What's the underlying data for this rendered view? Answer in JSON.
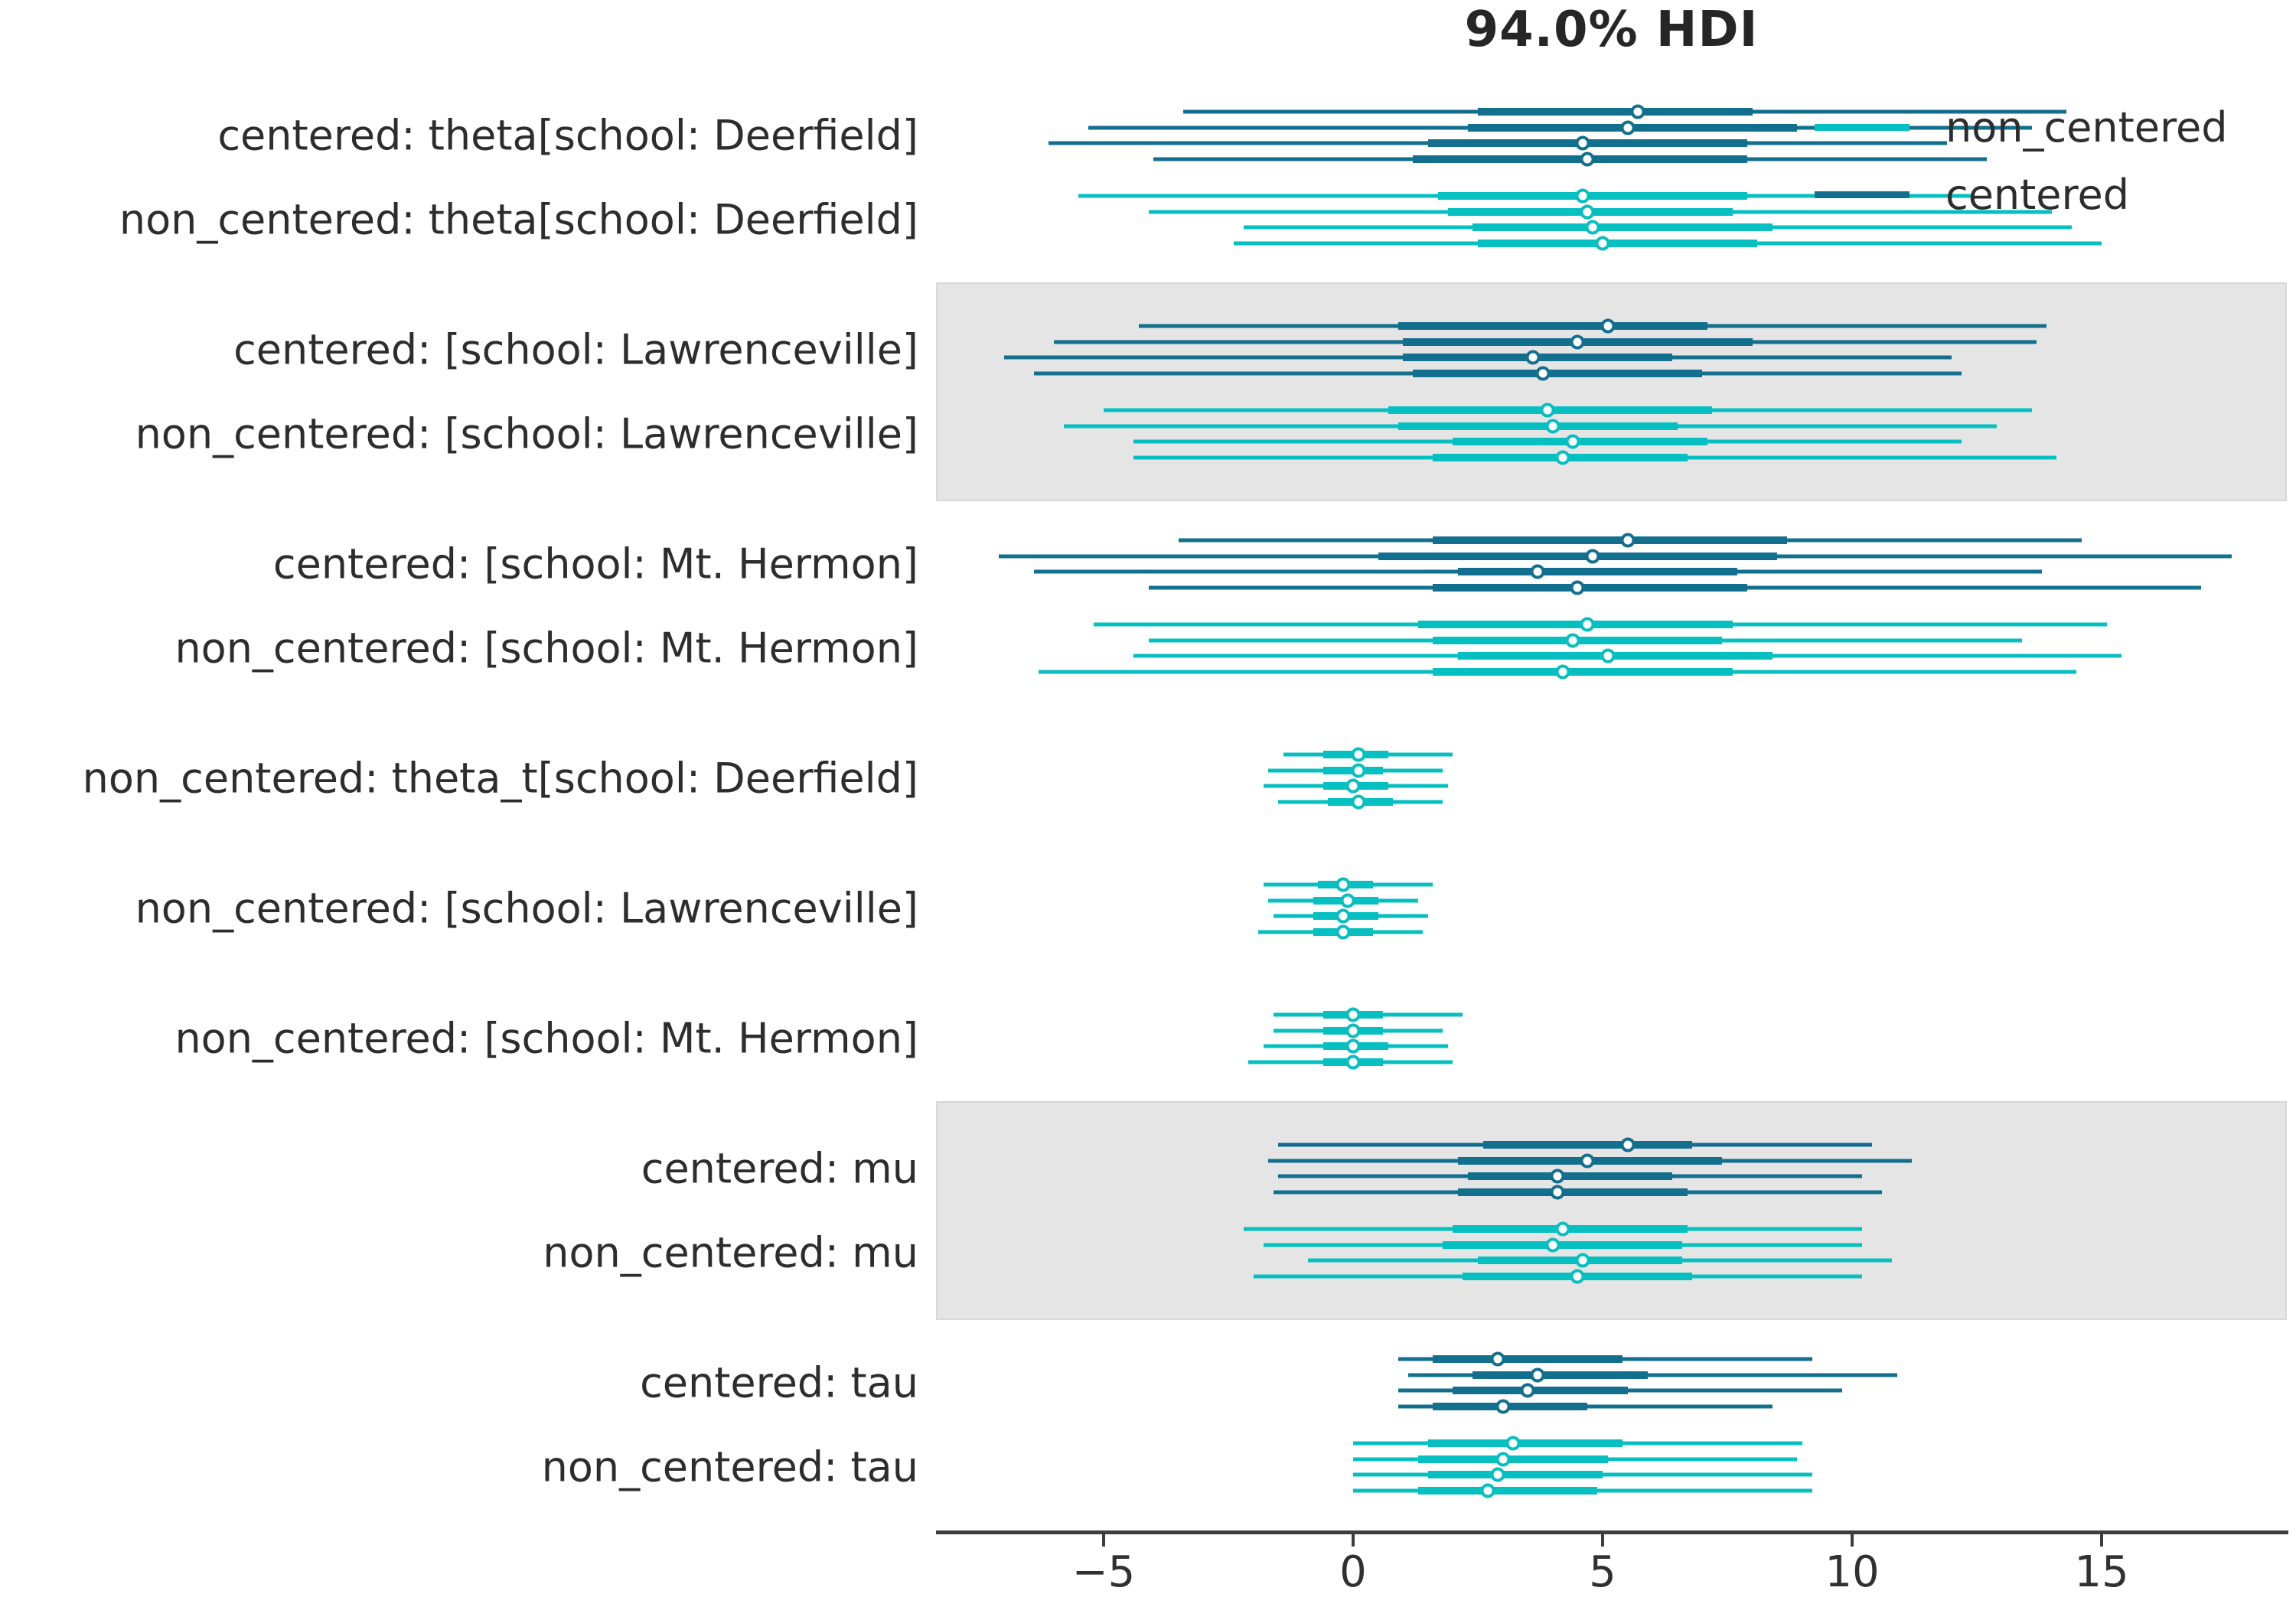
{
  "title": "94.0% HDI",
  "chart_data": {
    "type": "forest",
    "title": "94.0% HDI",
    "hdi_probability": "94.0%",
    "xlabel": "",
    "xlim": [
      -8.4,
      18.7
    ],
    "x_ticks": [
      {
        "value": -5,
        "label": "−5"
      },
      {
        "value": 0,
        "label": "0"
      },
      {
        "value": 5,
        "label": "5"
      },
      {
        "value": 10,
        "label": "10"
      },
      {
        "value": 15,
        "label": "15"
      }
    ],
    "grid": "off",
    "legend_position": "upper right",
    "legend": [
      {
        "label": "non_centered",
        "color": "#06bfc0"
      },
      {
        "label": "centered",
        "color": "#136f8e"
      }
    ],
    "model_colors": {
      "centered": "#136f8e",
      "non_centered": "#06bfc0"
    },
    "chain_value_format": [
      "hdi94_low",
      "quartile_low",
      "median",
      "quartile_high",
      "hdi94_high"
    ],
    "groups": [
      {
        "shaded": false,
        "rows": [
          {
            "label": "centered: theta[school: Deerfield]",
            "model": "centered",
            "chains": [
              [
                -3.4,
                2.5,
                5.7,
                8.0,
                14.3
              ],
              [
                -5.3,
                2.3,
                5.5,
                8.9,
                13.6
              ],
              [
                -6.1,
                1.5,
                4.6,
                7.9,
                11.9
              ],
              [
                -4.0,
                1.2,
                4.7,
                7.9,
                12.7
              ]
            ]
          },
          {
            "label": "non_centered: theta[school: Deerfield]",
            "model": "non_centered",
            "chains": [
              [
                -5.5,
                1.7,
                4.6,
                7.9,
                12.4
              ],
              [
                -4.1,
                1.9,
                4.7,
                7.6,
                14.0
              ],
              [
                -2.2,
                2.4,
                4.8,
                8.4,
                14.4
              ],
              [
                -2.4,
                2.5,
                5.0,
                8.1,
                15.0
              ]
            ]
          }
        ]
      },
      {
        "shaded": true,
        "rows": [
          {
            "label": "centered: [school: Lawrenceville]",
            "model": "centered",
            "chains": [
              [
                -4.3,
                0.9,
                5.1,
                7.1,
                13.9
              ],
              [
                -6.0,
                1.0,
                4.5,
                8.0,
                13.7
              ],
              [
                -7.0,
                1.0,
                3.6,
                6.4,
                12.0
              ],
              [
                -6.4,
                1.2,
                3.8,
                7.0,
                12.2
              ]
            ]
          },
          {
            "label": "non_centered: [school: Lawrenceville]",
            "model": "non_centered",
            "chains": [
              [
                -5.0,
                0.7,
                3.9,
                7.2,
                13.6
              ],
              [
                -5.8,
                0.9,
                4.0,
                6.5,
                12.9
              ],
              [
                -4.4,
                2.0,
                4.4,
                7.1,
                12.2
              ],
              [
                -4.4,
                1.6,
                4.2,
                6.7,
                14.1
              ]
            ]
          }
        ]
      },
      {
        "shaded": false,
        "rows": [
          {
            "label": "centered: [school: Mt. Hermon]",
            "model": "centered",
            "chains": [
              [
                -3.5,
                1.6,
                5.5,
                8.7,
                14.6
              ],
              [
                -7.1,
                0.5,
                4.8,
                8.5,
                17.6
              ],
              [
                -6.4,
                2.1,
                3.7,
                7.7,
                13.8
              ],
              [
                -4.1,
                1.6,
                4.5,
                7.9,
                17.0
              ]
            ]
          },
          {
            "label": "non_centered: [school: Mt. Hermon]",
            "model": "non_centered",
            "chains": [
              [
                -5.2,
                1.3,
                4.7,
                7.6,
                15.1
              ],
              [
                -4.1,
                1.6,
                4.4,
                7.4,
                13.4
              ],
              [
                -4.4,
                2.1,
                5.1,
                8.4,
                15.4
              ],
              [
                -6.3,
                1.6,
                4.2,
                7.6,
                14.5
              ]
            ]
          }
        ]
      },
      {
        "shaded": false,
        "rows": [
          {
            "label": "non_centered: theta_t[school: Deerfield]",
            "model": "non_centered",
            "chains": [
              [
                -1.4,
                -0.6,
                0.1,
                0.7,
                2.0
              ],
              [
                -1.7,
                -0.6,
                0.1,
                0.6,
                1.8
              ],
              [
                -1.8,
                -0.6,
                0.0,
                0.7,
                1.9
              ],
              [
                -1.5,
                -0.5,
                0.1,
                0.8,
                1.8
              ]
            ]
          }
        ]
      },
      {
        "shaded": false,
        "rows": [
          {
            "label": "non_centered: [school: Lawrenceville]",
            "model": "non_centered",
            "chains": [
              [
                -1.8,
                -0.7,
                -0.2,
                0.4,
                1.6
              ],
              [
                -1.7,
                -0.8,
                -0.1,
                0.5,
                1.3
              ],
              [
                -1.6,
                -0.8,
                -0.2,
                0.5,
                1.5
              ],
              [
                -1.9,
                -0.8,
                -0.2,
                0.4,
                1.4
              ]
            ]
          }
        ]
      },
      {
        "shaded": false,
        "rows": [
          {
            "label": "non_centered: [school: Mt. Hermon]",
            "model": "non_centered",
            "chains": [
              [
                -1.6,
                -0.6,
                0.0,
                0.6,
                2.2
              ],
              [
                -1.6,
                -0.6,
                0.0,
                0.6,
                1.8
              ],
              [
                -1.8,
                -0.6,
                0.0,
                0.7,
                1.9
              ],
              [
                -2.1,
                -0.6,
                0.0,
                0.6,
                2.0
              ]
            ]
          }
        ]
      },
      {
        "shaded": true,
        "rows": [
          {
            "label": "centered: mu",
            "model": "centered",
            "chains": [
              [
                -1.5,
                2.6,
                5.5,
                6.8,
                10.4
              ],
              [
                -1.7,
                2.1,
                4.7,
                7.4,
                11.2
              ],
              [
                -1.5,
                2.3,
                4.1,
                6.4,
                10.2
              ],
              [
                -1.6,
                2.1,
                4.1,
                6.7,
                10.6
              ]
            ]
          },
          {
            "label": "non_centered: mu",
            "model": "non_centered",
            "chains": [
              [
                -2.2,
                2.0,
                4.2,
                6.7,
                10.2
              ],
              [
                -1.8,
                1.8,
                4.0,
                6.6,
                10.2
              ],
              [
                -0.9,
                2.5,
                4.6,
                6.6,
                10.8
              ],
              [
                -2.0,
                2.2,
                4.5,
                6.8,
                10.2
              ]
            ]
          }
        ]
      },
      {
        "shaded": false,
        "rows": [
          {
            "label": "centered: tau",
            "model": "centered",
            "chains": [
              [
                0.9,
                1.6,
                2.9,
                5.4,
                9.2
              ],
              [
                1.1,
                2.4,
                3.7,
                5.9,
                10.9
              ],
              [
                0.9,
                2.0,
                3.5,
                5.5,
                9.8
              ],
              [
                0.9,
                1.6,
                3.0,
                4.7,
                8.4
              ]
            ]
          },
          {
            "label": "non_centered: tau",
            "model": "non_centered",
            "chains": [
              [
                0.0,
                1.5,
                3.2,
                5.4,
                9.0
              ],
              [
                0.0,
                1.3,
                3.0,
                5.1,
                8.9
              ],
              [
                0.0,
                1.5,
                2.9,
                5.0,
                9.2
              ],
              [
                0.0,
                1.3,
                2.7,
                4.9,
                9.2
              ]
            ]
          }
        ]
      }
    ]
  }
}
